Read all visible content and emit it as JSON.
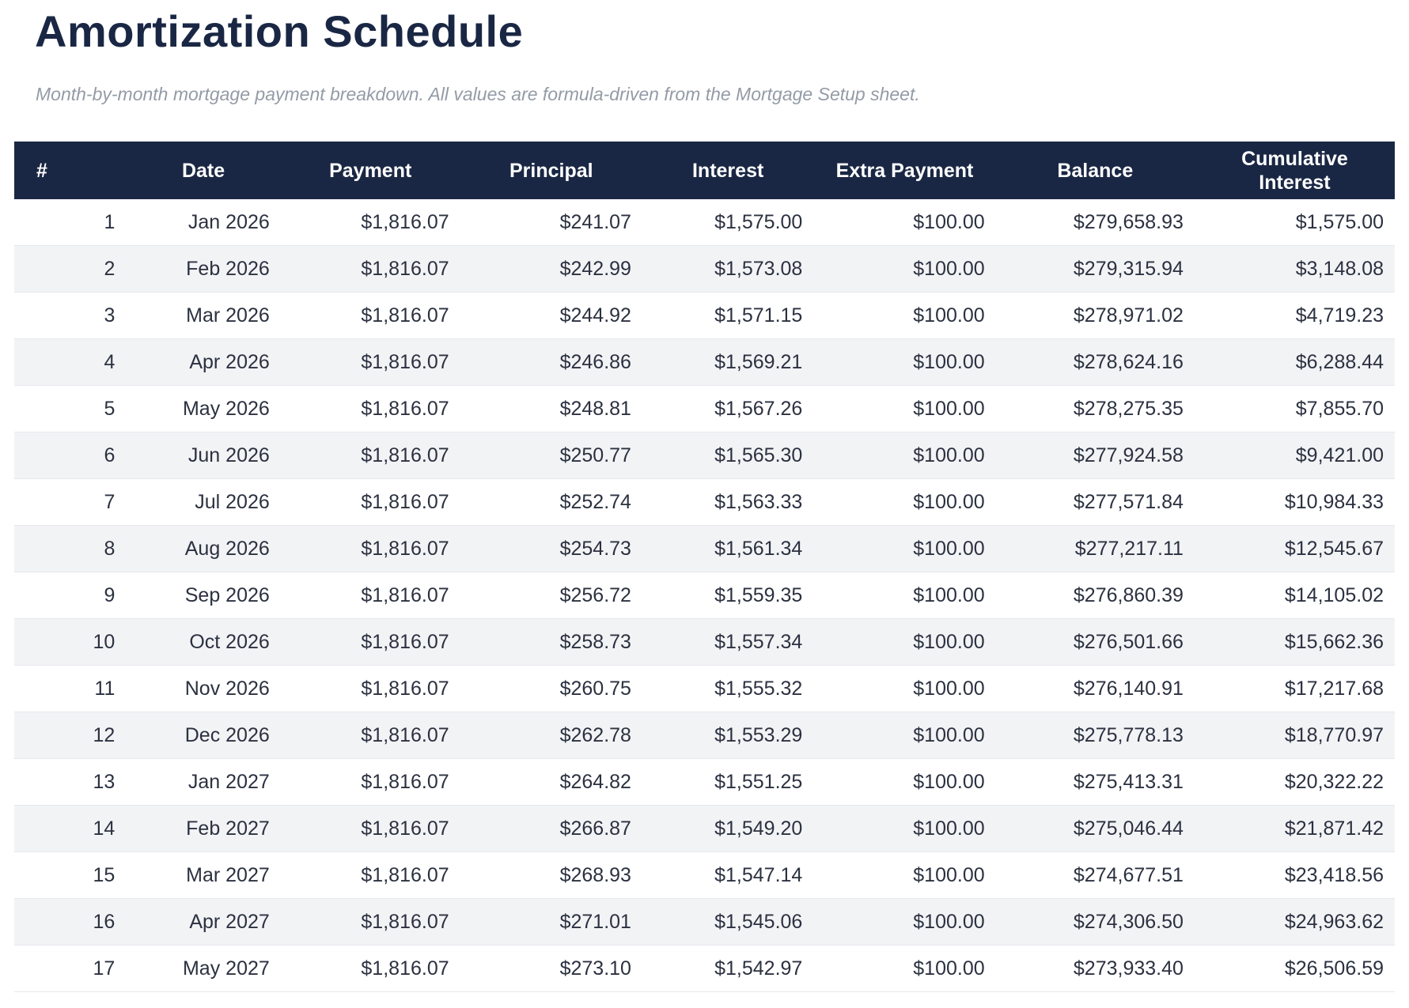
{
  "page": {
    "title": "Amortization Schedule",
    "subtitle": "Month-by-month mortgage payment breakdown. All values are formula-driven from the Mortgage Setup sheet."
  },
  "colors": {
    "header_bg": "#1a2744",
    "title_text": "#1a2744",
    "stripe_row": "#f2f3f5",
    "row_border": "#e6e8ec",
    "cell_text": "#2b3140",
    "subtitle_text": "#949ba6"
  },
  "table": {
    "columns": [
      "#",
      "Date",
      "Payment",
      "Principal",
      "Interest",
      "Extra Payment",
      "Balance",
      "Cumulative Interest"
    ],
    "column_keys": [
      "num",
      "date",
      "payment",
      "principal",
      "interest",
      "extra-payment",
      "balance",
      "cumulative-interest"
    ],
    "rows": [
      [
        "1",
        "Jan 2026",
        "$1,816.07",
        "$241.07",
        "$1,575.00",
        "$100.00",
        "$279,658.93",
        "$1,575.00"
      ],
      [
        "2",
        "Feb 2026",
        "$1,816.07",
        "$242.99",
        "$1,573.08",
        "$100.00",
        "$279,315.94",
        "$3,148.08"
      ],
      [
        "3",
        "Mar 2026",
        "$1,816.07",
        "$244.92",
        "$1,571.15",
        "$100.00",
        "$278,971.02",
        "$4,719.23"
      ],
      [
        "4",
        "Apr 2026",
        "$1,816.07",
        "$246.86",
        "$1,569.21",
        "$100.00",
        "$278,624.16",
        "$6,288.44"
      ],
      [
        "5",
        "May 2026",
        "$1,816.07",
        "$248.81",
        "$1,567.26",
        "$100.00",
        "$278,275.35",
        "$7,855.70"
      ],
      [
        "6",
        "Jun 2026",
        "$1,816.07",
        "$250.77",
        "$1,565.30",
        "$100.00",
        "$277,924.58",
        "$9,421.00"
      ],
      [
        "7",
        "Jul 2026",
        "$1,816.07",
        "$252.74",
        "$1,563.33",
        "$100.00",
        "$277,571.84",
        "$10,984.33"
      ],
      [
        "8",
        "Aug 2026",
        "$1,816.07",
        "$254.73",
        "$1,561.34",
        "$100.00",
        "$277,217.11",
        "$12,545.67"
      ],
      [
        "9",
        "Sep 2026",
        "$1,816.07",
        "$256.72",
        "$1,559.35",
        "$100.00",
        "$276,860.39",
        "$14,105.02"
      ],
      [
        "10",
        "Oct 2026",
        "$1,816.07",
        "$258.73",
        "$1,557.34",
        "$100.00",
        "$276,501.66",
        "$15,662.36"
      ],
      [
        "11",
        "Nov 2026",
        "$1,816.07",
        "$260.75",
        "$1,555.32",
        "$100.00",
        "$276,140.91",
        "$17,217.68"
      ],
      [
        "12",
        "Dec 2026",
        "$1,816.07",
        "$262.78",
        "$1,553.29",
        "$100.00",
        "$275,778.13",
        "$18,770.97"
      ],
      [
        "13",
        "Jan 2027",
        "$1,816.07",
        "$264.82",
        "$1,551.25",
        "$100.00",
        "$275,413.31",
        "$20,322.22"
      ],
      [
        "14",
        "Feb 2027",
        "$1,816.07",
        "$266.87",
        "$1,549.20",
        "$100.00",
        "$275,046.44",
        "$21,871.42"
      ],
      [
        "15",
        "Mar 2027",
        "$1,816.07",
        "$268.93",
        "$1,547.14",
        "$100.00",
        "$274,677.51",
        "$23,418.56"
      ],
      [
        "16",
        "Apr 2027",
        "$1,816.07",
        "$271.01",
        "$1,545.06",
        "$100.00",
        "$274,306.50",
        "$24,963.62"
      ],
      [
        "17",
        "May 2027",
        "$1,816.07",
        "$273.10",
        "$1,542.97",
        "$100.00",
        "$273,933.40",
        "$26,506.59"
      ]
    ]
  }
}
